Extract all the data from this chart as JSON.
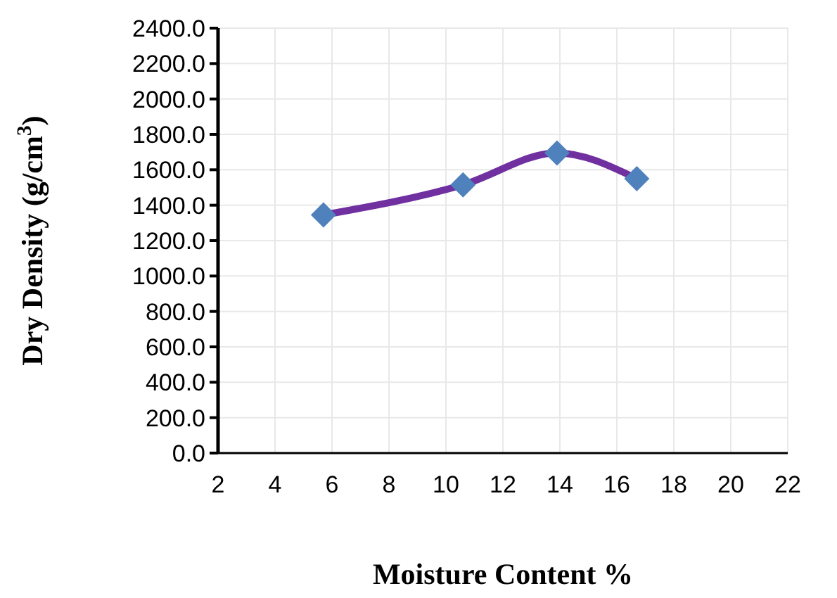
{
  "chart_data": {
    "type": "line",
    "xlabel": "Moisture Content %",
    "ylabel": "Dry Density (g/cm$^{3}$)",
    "series": [
      {
        "x": [
          5.7,
          10.6,
          13.9,
          16.7
        ],
        "values": [
          1345,
          1515,
          1695,
          1550
        ],
        "color": "#7030a0",
        "colors": [
          "#4f81bd",
          "#4f81bd",
          "#4f81bd",
          "#4f81bd"
        ]
      }
    ],
    "xlim": [
      2,
      22
    ],
    "xticks": [
      2,
      4,
      6,
      8,
      10,
      12,
      14,
      16,
      18,
      20,
      22
    ],
    "ylim": [
      0,
      2400
    ],
    "yticks": [
      {
        "value": 0,
        "label": "0.0"
      },
      {
        "value": 200,
        "label": "200.0"
      },
      {
        "value": 400,
        "label": "400.0"
      },
      {
        "value": 600,
        "label": "600.0"
      },
      {
        "value": 800,
        "label": "800.0"
      },
      {
        "value": 1000,
        "label": "1000.0"
      },
      {
        "value": 1200,
        "label": "1200.0"
      },
      {
        "value": 1400,
        "label": "1400.0"
      },
      {
        "value": 1600,
        "label": "1600.0"
      },
      {
        "value": 1800,
        "label": "1800.0"
      },
      {
        "value": 2000,
        "label": "2000.0"
      },
      {
        "value": 2200,
        "label": "2200.0"
      },
      {
        "value": 2400,
        "label": "2400.0"
      }
    ],
    "grid": true,
    "marker": "diamond",
    "line_style": "solid"
  }
}
